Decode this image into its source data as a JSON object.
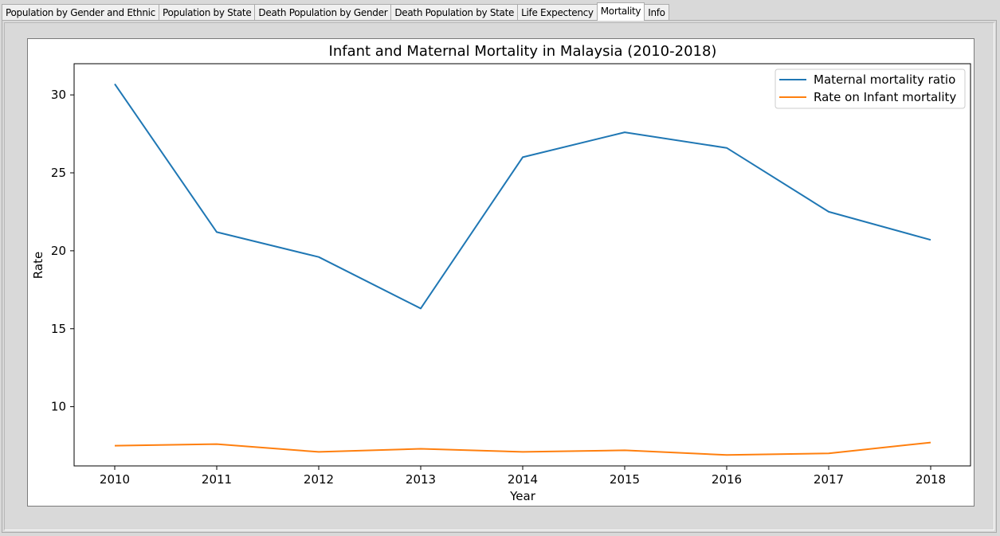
{
  "tabs": [
    {
      "label": "Population by Gender and Ethnic",
      "active": false
    },
    {
      "label": "Population by State",
      "active": false
    },
    {
      "label": "Death Population by Gender",
      "active": false
    },
    {
      "label": "Death Population by State",
      "active": false
    },
    {
      "label": "Life Expectency",
      "active": false
    },
    {
      "label": "Mortality",
      "active": true
    },
    {
      "label": "Info",
      "active": false
    }
  ],
  "chart_data": {
    "type": "line",
    "title": "Infant and Maternal Mortality in Malaysia (2010-2018)",
    "xlabel": "Year",
    "ylabel": "Rate",
    "x": [
      2010,
      2011,
      2012,
      2013,
      2014,
      2015,
      2016,
      2017,
      2018
    ],
    "x_tick_labels": [
      "2010",
      "2011",
      "2012",
      "2013",
      "2014",
      "2015",
      "2016",
      "2017",
      "2018"
    ],
    "ylim": [
      6.2,
      32.0
    ],
    "y_ticks": [
      10,
      15,
      20,
      25,
      30
    ],
    "y_tick_labels": [
      "10",
      "15",
      "20",
      "25",
      "30"
    ],
    "grid": false,
    "legend_position": "top-right",
    "series": [
      {
        "name": "Maternal mortality ratio",
        "color": "#1f77b4",
        "values": [
          30.7,
          21.2,
          19.6,
          16.3,
          26.0,
          27.6,
          26.6,
          22.5,
          20.7
        ]
      },
      {
        "name": "Rate on Infant mortality",
        "color": "#ff7f0e",
        "values": [
          7.5,
          7.6,
          7.1,
          7.3,
          7.1,
          7.2,
          6.9,
          7.0,
          7.7
        ]
      }
    ]
  }
}
